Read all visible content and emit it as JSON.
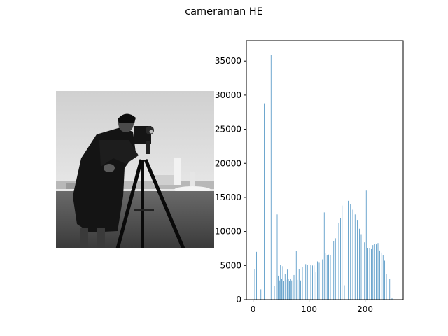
{
  "figure": {
    "title": "cameraman HE"
  },
  "image_panel": {
    "alt": "cameraman"
  },
  "chart_data": {
    "type": "bar",
    "title": "",
    "xlabel": "",
    "ylabel": "",
    "xlim": [
      -12,
      268
    ],
    "ylim": [
      0,
      38000
    ],
    "xticks": [
      0,
      100,
      200
    ],
    "yticks": [
      0,
      5000,
      10000,
      15000,
      20000,
      25000,
      30000,
      35000
    ],
    "color": "#1f77b4",
    "grid": false,
    "legend": "none",
    "x": [
      0,
      3,
      6,
      14,
      20,
      25,
      32,
      38,
      41,
      43,
      45,
      47,
      49,
      51,
      53,
      55,
      57,
      59,
      61,
      63,
      65,
      67,
      69,
      71,
      73,
      75,
      77,
      79,
      82,
      85,
      88,
      91,
      94,
      97,
      100,
      103,
      106,
      109,
      112,
      115,
      118,
      121,
      124,
      127,
      129,
      132,
      135,
      138,
      141,
      144,
      147,
      150,
      153,
      156,
      159,
      163,
      166,
      170,
      174,
      178,
      182,
      186,
      190,
      193,
      196,
      199,
      202,
      205,
      208,
      211,
      214,
      217,
      220,
      223,
      226,
      229,
      232,
      235,
      238,
      241,
      244,
      246,
      248,
      250,
      252,
      254,
      255
    ],
    "values": [
      2200,
      4500,
      7000,
      1500,
      28800,
      14900,
      35900,
      2000,
      13300,
      12500,
      3500,
      2800,
      5100,
      3000,
      4900,
      2700,
      3700,
      2900,
      4400,
      3000,
      2700,
      3000,
      2800,
      2600,
      3600,
      2900,
      7100,
      2900,
      4500,
      2800,
      4800,
      5000,
      5200,
      5100,
      5200,
      5100,
      5000,
      5000,
      4000,
      5600,
      5400,
      5700,
      5900,
      12800,
      6800,
      6500,
      6600,
      6500,
      6400,
      8600,
      9000,
      2500,
      11300,
      12000,
      13800,
      2100,
      14800,
      14500,
      14000,
      13200,
      12500,
      11700,
      10400,
      9600,
      8700,
      8400,
      16000,
      7600,
      7500,
      7400,
      8000,
      8200,
      8100,
      8300,
      7200,
      6900,
      6500,
      5700,
      3800,
      2900,
      3000,
      500,
      200,
      100,
      50,
      30,
      20
    ]
  }
}
